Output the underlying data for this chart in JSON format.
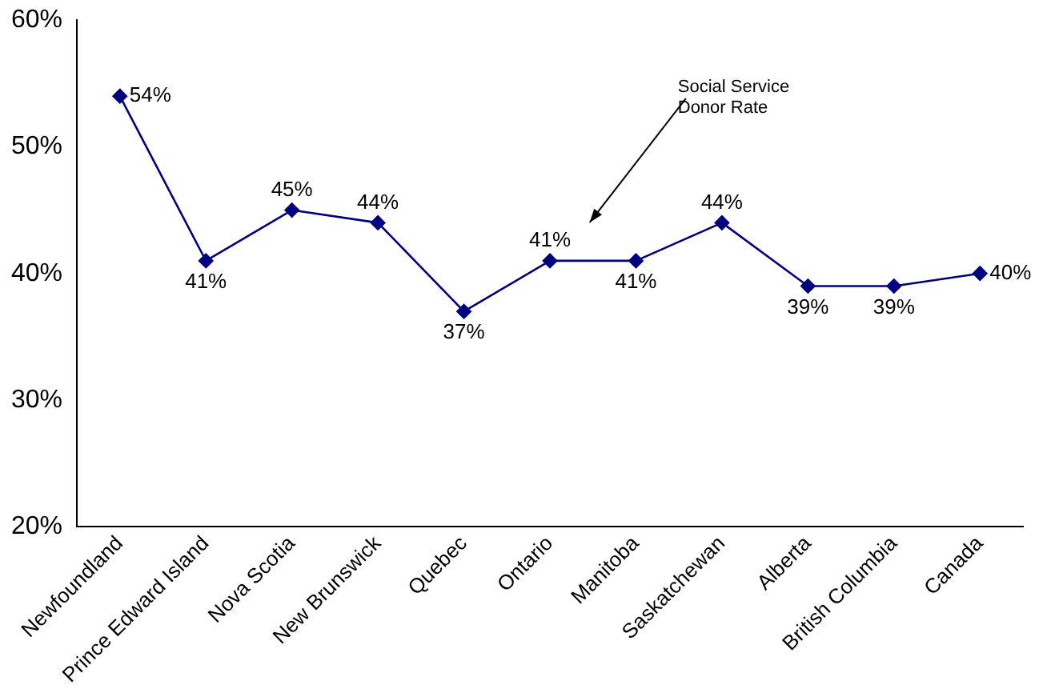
{
  "chart_data": {
    "type": "line",
    "categories": [
      "Newfoundland",
      "Prince Edward Island",
      "Nova Scotia",
      "New Brunswick",
      "Quebec",
      "Ontario",
      "Manitoba",
      "Saskatchewan",
      "Alberta",
      "British Columbia",
      "Canada"
    ],
    "series": [
      {
        "name": "Social Service Donor Rate",
        "color": "#000080",
        "values": [
          54,
          41,
          45,
          44,
          37,
          41,
          41,
          44,
          39,
          39,
          40
        ],
        "value_labels": [
          "54%",
          "41%",
          "45%",
          "44%",
          "37%",
          "41%",
          "41%",
          "44%",
          "39%",
          "39%",
          "40%"
        ]
      }
    ],
    "ylim": [
      20,
      60
    ],
    "yticks": [
      {
        "value": 20,
        "label": "20%"
      },
      {
        "value": 30,
        "label": "30%"
      },
      {
        "value": 40,
        "label": "40%"
      },
      {
        "value": 50,
        "label": "50%"
      },
      {
        "value": 60,
        "label": "60%"
      }
    ],
    "grid": false,
    "legend": false,
    "marker": "diamond",
    "line_style": "solid"
  }
}
